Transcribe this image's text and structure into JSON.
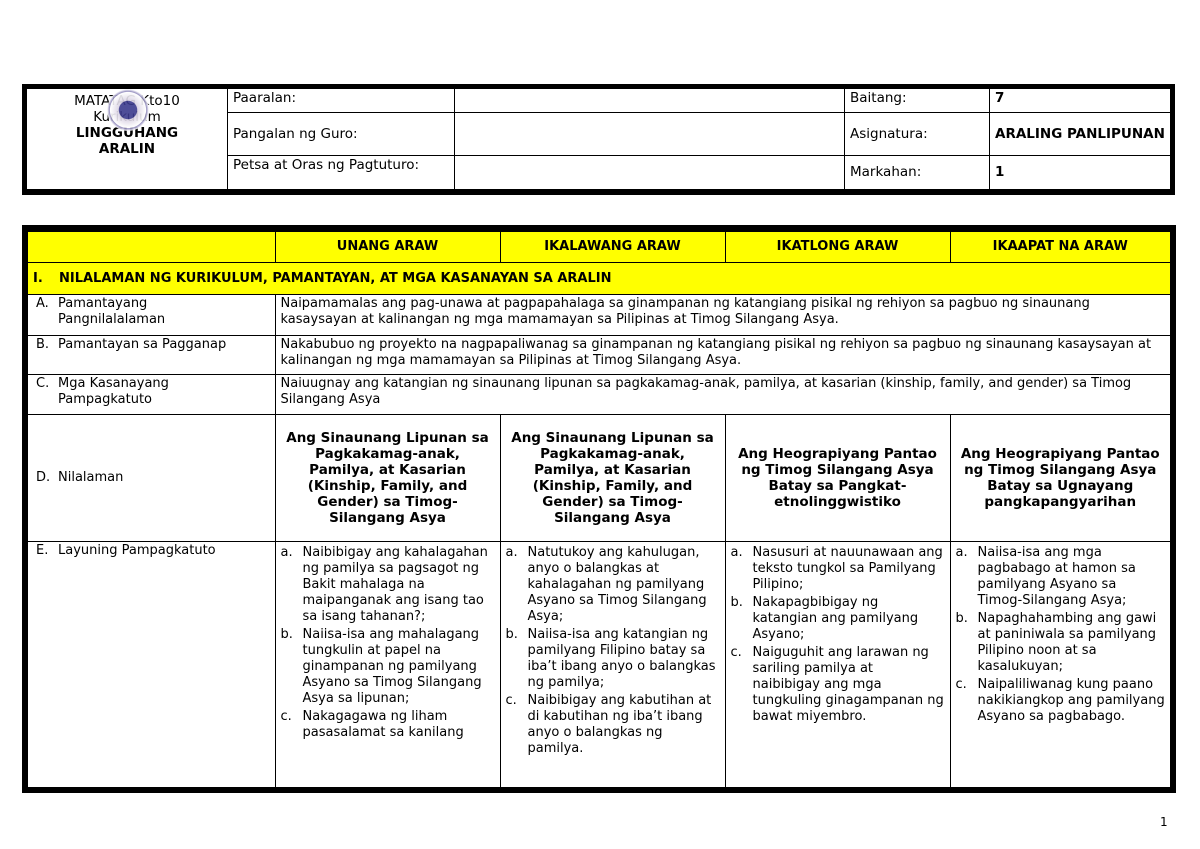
{
  "header": {
    "logo_text_1": "MATATAG Kto10",
    "logo_text_2": "Kurikulum",
    "title_1": "LINGGUHANG",
    "title_2": "ARALIN",
    "paaralan_label": "Paaralan:",
    "paaralan_value": "",
    "guro_label": "Pangalan ng Guro:",
    "guro_value": "",
    "petsa_label": "Petsa at Oras ng Pagtuturo:",
    "petsa_value": "",
    "baitang_label": "Baitang:",
    "baitang_value": "7",
    "asignatura_label": "Asignatura:",
    "asignatura_value": "ARALING PANLIPUNAN",
    "markahan_label": "Markahan:",
    "markahan_value": "1"
  },
  "columns": [
    "UNANG ARAW",
    "IKALAWANG ARAW",
    "IKATLONG ARAW",
    "IKAAPAT NA ARAW"
  ],
  "section": {
    "num": "I.",
    "title": "NILALAMAN NG KURIKULUM, PAMANTAYAN, AT MGA KASANAYAN SA ARALIN"
  },
  "rows": [
    {
      "k": "A.",
      "label": "Pamantayang Pangnilalalaman",
      "text": "Naipamamalas ang pag-unawa at pagpapahalaga sa ginampanan ng katangiang pisikal ng rehiyon sa pagbuo ng sinaunang kasaysayan at kalinangan ng mga mamamayan sa Pilipinas at Timog Silangang Asya."
    },
    {
      "k": "B.",
      "label": "Pamantayan sa Pagganap",
      "text": "Nakabubuo ng proyekto na nagpapaliwanag sa ginampanan ng katangiang pisikal ng rehiyon sa pagbuo ng sinaunang kasaysayan at kalinangan ng mga mamamayan sa Pilipinas at Timog Silangang Asya."
    },
    {
      "k": "C.",
      "label": "Mga Kasanayang Pampagkatuto",
      "text": "Naiuugnay ang katangian ng sinaunang lipunan sa pagkakamag-anak, pamilya, at kasarian (kinship, family, and gender) sa Timog Silangang Asya"
    }
  ],
  "nilalaman": {
    "k": "D.",
    "label": "Nilalaman",
    "days": [
      "Ang Sinaunang Lipunan sa Pagkakamag-anak, Pamilya, at Kasarian (Kinship, Family, and Gender) sa Timog-Silangang Asya",
      "Ang Sinaunang Lipunan sa Pagkakamag-anak, Pamilya, at Kasarian (Kinship, Family, and Gender) sa Timog-Silangang Asya",
      "Ang Heograpiyang Pantao ng Timog Silangang Asya Batay sa Pangkat-etnolinggwistiko",
      "Ang Heograpiyang Pantao ng Timog Silangang Asya Batay sa Ugnayang pangkapangyarihan"
    ]
  },
  "layunin": {
    "k": "E.",
    "label": "Layuning Pampagkatuto",
    "days": [
      [
        {
          "k": "a.",
          "t": "Naibibigay ang kahalagahan ng pamilya sa pagsagot ng Bakit mahalaga na maipanganak ang isang tao sa isang tahanan?;"
        },
        {
          "k": "b.",
          "t": "Naiisa-isa ang mahalagang tungkulin at papel na ginampanan ng pamilyang Asyano sa Timog Silangang Asya sa lipunan;"
        },
        {
          "k": "c.",
          "t": "Nakagagawa ng liham pasasalamat sa kanilang"
        }
      ],
      [
        {
          "k": "a.",
          "t": "Natutukoy ang kahulugan, anyo o balangkas at kahalagahan ng pamilyang Asyano sa Timog Silangang Asya;"
        },
        {
          "k": "b.",
          "t": "Naiisa-isa ang katangian ng pamilyang Filipino batay sa iba’t ibang anyo o balangkas ng pamilya;"
        },
        {
          "k": "c.",
          "t": "Naibibigay ang kabutihan at di kabutihan ng iba’t ibang anyo o balangkas ng pamilya."
        }
      ],
      [
        {
          "k": "a.",
          "t": "Nasusuri at nauunawaan ang teksto tungkol sa Pamilyang Pilipino;"
        },
        {
          "k": "b.",
          "t": "Nakapagbibigay ng katangian ang pamilyang Asyano;"
        },
        {
          "k": "c.",
          "t": "Naiguguhit ang larawan ng sariling pamilya at naibibigay ang mga tungkuling ginagampanan ng bawat miyembro."
        }
      ],
      [
        {
          "k": "a.",
          "t": "Naiisa-isa ang mga pagbabago at hamon sa pamilyang Asyano sa Timog-Silangang Asya;"
        },
        {
          "k": "b.",
          "t": "Napaghahambing ang gawi at paniniwala sa pamilyang Pilipino noon at sa kasalukuyan;"
        },
        {
          "k": "c.",
          "t": "Naipaliliwanag kung paano nakikiangkop ang pamilyang Asyano sa pagbabago."
        }
      ]
    ]
  },
  "page_number": "1",
  "colors": {
    "highlight": "#ffff00"
  }
}
